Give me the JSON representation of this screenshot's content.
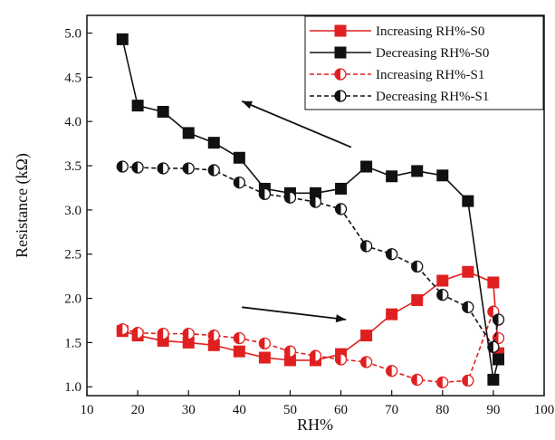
{
  "chart_data": {
    "type": "line",
    "xlabel": "RH%",
    "ylabel": "Resistance (kΩ)",
    "xlim": [
      10,
      100
    ],
    "ylim": [
      0.9,
      5.2
    ],
    "xticks": [
      10,
      20,
      30,
      40,
      50,
      60,
      70,
      80,
      90,
      100
    ],
    "yticks": [
      1.0,
      1.5,
      2.0,
      2.5,
      3.0,
      3.5,
      4.0,
      4.5,
      5.0
    ],
    "ytick_labels": [
      "1.0",
      "1.5",
      "2.0",
      "2.5",
      "3.0",
      "3.5",
      "4.0",
      "4.5",
      "5.0"
    ],
    "grid": false,
    "legend_position": "top-right",
    "series": [
      {
        "name": "Increasing RH%-S0",
        "color": "#e02020",
        "marker": "square",
        "line": "solid",
        "x": [
          17,
          20,
          25,
          30,
          35,
          40,
          45,
          50,
          55,
          60,
          65,
          70,
          75,
          80,
          85,
          90,
          91
        ],
        "y": [
          1.63,
          1.58,
          1.52,
          1.5,
          1.47,
          1.4,
          1.33,
          1.3,
          1.3,
          1.37,
          1.58,
          1.82,
          1.98,
          2.2,
          2.3,
          2.18,
          1.38
        ]
      },
      {
        "name": "Decreasing RH%-S0",
        "color": "#111111",
        "marker": "square",
        "line": "solid",
        "x": [
          17,
          20,
          25,
          30,
          35,
          40,
          45,
          50,
          55,
          60,
          65,
          70,
          75,
          80,
          85,
          90,
          91
        ],
        "y": [
          4.93,
          4.18,
          4.11,
          3.87,
          3.76,
          3.59,
          3.24,
          3.19,
          3.19,
          3.24,
          3.49,
          3.38,
          3.44,
          3.39,
          3.1,
          1.08,
          1.31
        ]
      },
      {
        "name": "Increasing RH%-S1",
        "color": "#e02020",
        "marker": "half-circle",
        "line": "dashed",
        "x": [
          17,
          20,
          25,
          30,
          35,
          40,
          45,
          50,
          55,
          60,
          65,
          70,
          75,
          80,
          85,
          90,
          91
        ],
        "y": [
          1.65,
          1.61,
          1.6,
          1.6,
          1.58,
          1.55,
          1.49,
          1.4,
          1.35,
          1.31,
          1.28,
          1.18,
          1.08,
          1.05,
          1.07,
          1.85,
          1.55
        ]
      },
      {
        "name": "Decreasing RH%-S1",
        "color": "#111111",
        "marker": "half-circle",
        "line": "dashed",
        "x": [
          17,
          20,
          25,
          30,
          35,
          40,
          45,
          50,
          55,
          60,
          65,
          70,
          75,
          80,
          85,
          90,
          91
        ],
        "y": [
          3.49,
          3.48,
          3.47,
          3.47,
          3.45,
          3.31,
          3.18,
          3.14,
          3.09,
          3.01,
          2.59,
          2.5,
          2.36,
          2.04,
          1.9,
          1.45,
          1.76
        ]
      }
    ],
    "annotations": [
      {
        "type": "arrow",
        "from": [
          62,
          3.71
        ],
        "to": [
          40.5,
          4.23
        ]
      },
      {
        "type": "arrow",
        "from": [
          40.5,
          1.9
        ],
        "to": [
          61,
          1.76
        ]
      }
    ]
  }
}
